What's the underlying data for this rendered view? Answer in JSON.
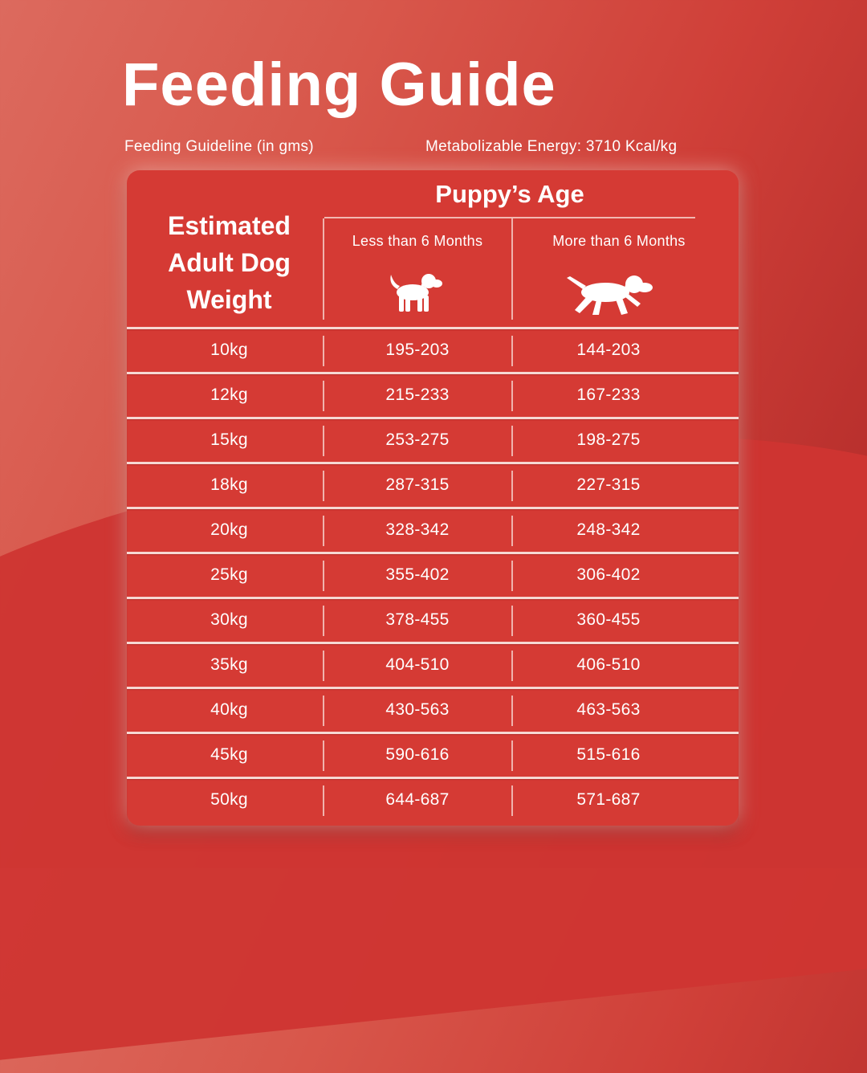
{
  "page": {
    "title": "Feeding Guide",
    "guideline_label": "Feeding Guideline (in gms)",
    "energy_label": "Metabolizable Energy: 3710 Kcal/kg"
  },
  "table": {
    "weight_header_lines": [
      "Estimated",
      "Adult Dog",
      "Weight"
    ],
    "age_header": "Puppy’s Age",
    "col_less": "Less than 6 Months",
    "col_more": "More than 6 Months",
    "icons": {
      "less": "standing-puppy-icon",
      "more": "running-dog-icon"
    },
    "rows": [
      {
        "weight": "10kg",
        "less": "195-203",
        "more": "144-203"
      },
      {
        "weight": "12kg",
        "less": "215-233",
        "more": "167-233"
      },
      {
        "weight": "15kg",
        "less": "253-275",
        "more": "198-275"
      },
      {
        "weight": "18kg",
        "less": "287-315",
        "more": "227-315"
      },
      {
        "weight": "20kg",
        "less": "328-342",
        "more": "248-342"
      },
      {
        "weight": "25kg",
        "less": "355-402",
        "more": "306-402"
      },
      {
        "weight": "30kg",
        "less": "378-455",
        "more": "360-455"
      },
      {
        "weight": "35kg",
        "less": "404-510",
        "more": "406-510"
      },
      {
        "weight": "40kg",
        "less": "430-563",
        "more": "463-563"
      },
      {
        "weight": "45kg",
        "less": "590-616",
        "more": "515-616"
      },
      {
        "weight": "50kg",
        "less": "644-687",
        "more": "571-687"
      }
    ]
  },
  "colors": {
    "background": "#d8574b",
    "card": "#d53a34",
    "text": "#ffffff"
  }
}
